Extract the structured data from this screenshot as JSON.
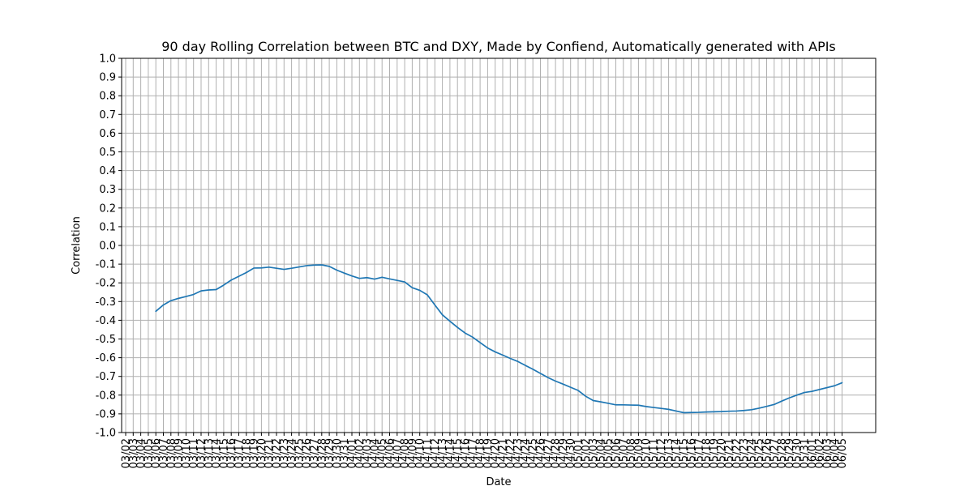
{
  "chart_data": {
    "type": "line",
    "title": "90 day Rolling Correlation between BTC and DXY, Made by Confiend, Automatically generated with APIs",
    "xlabel": "Date",
    "ylabel": "Correlation",
    "ylim": [
      -1.0,
      1.0
    ],
    "yticks": [
      -1.0,
      -0.9,
      -0.8,
      -0.7,
      -0.6,
      -0.5,
      -0.4,
      -0.3,
      -0.2,
      -0.1,
      0.0,
      0.1,
      0.2,
      0.3,
      0.4,
      0.5,
      0.6,
      0.7,
      0.8,
      0.9,
      1.0
    ],
    "ytick_labels": [
      "-1.0",
      "-0.9",
      "-0.8",
      "-0.7",
      "-0.6",
      "-0.5",
      "-0.4",
      "-0.3",
      "-0.2",
      "-0.1",
      "0.0",
      "0.1",
      "0.2",
      "0.3",
      "0.4",
      "0.5",
      "0.6",
      "0.7",
      "0.8",
      "0.9",
      "1.0"
    ],
    "grid": true,
    "x_ticks": [
      "03/02",
      "03/03",
      "03/04",
      "03/05",
      "03/06",
      "03/07",
      "03/08",
      "03/09",
      "03/10",
      "03/11",
      "03/12",
      "03/13",
      "03/14",
      "03/15",
      "03/16",
      "03/17",
      "03/18",
      "03/19",
      "03/20",
      "03/21",
      "03/22",
      "03/23",
      "03/24",
      "03/25",
      "03/26",
      "03/27",
      "03/28",
      "03/29",
      "03/30",
      "03/31",
      "04/01",
      "04/02",
      "04/03",
      "04/04",
      "04/05",
      "04/06",
      "04/07",
      "04/08",
      "04/09",
      "04/10",
      "04/11",
      "04/12",
      "04/13",
      "04/14",
      "04/15",
      "04/16",
      "04/17",
      "04/18",
      "04/19",
      "04/20",
      "04/21",
      "04/22",
      "04/23",
      "04/24",
      "04/25",
      "04/26",
      "04/27",
      "04/28",
      "04/29",
      "04/30",
      "05/01",
      "05/02",
      "05/03",
      "05/04",
      "05/05",
      "05/06",
      "05/07",
      "05/08",
      "05/09",
      "05/10",
      "05/11",
      "05/12",
      "05/13",
      "05/14",
      "05/15",
      "05/16",
      "05/17",
      "05/18",
      "05/19",
      "05/20",
      "05/21",
      "05/22",
      "05/23",
      "05/24",
      "05/25",
      "05/26",
      "05/27",
      "05/28",
      "05/29",
      "05/30",
      "05/31",
      "06/01",
      "06/02",
      "06/03",
      "06/04",
      "06/05"
    ],
    "series": [
      {
        "color": "#1f77b4",
        "x": [
          "03/06",
          "03/07",
          "03/08",
          "03/09",
          "03/10",
          "03/11",
          "03/12",
          "03/13",
          "03/14",
          "03/15",
          "03/16",
          "03/17",
          "03/18",
          "03/19",
          "03/20",
          "03/21",
          "03/22",
          "03/23",
          "03/24",
          "03/25",
          "03/26",
          "03/27",
          "03/28",
          "03/29",
          "03/30",
          "03/31",
          "04/01",
          "04/02",
          "04/03",
          "04/04",
          "04/05",
          "04/06",
          "04/07",
          "04/08",
          "04/09",
          "04/10",
          "04/11",
          "04/12",
          "04/13",
          "04/14",
          "04/15",
          "04/16",
          "04/17",
          "04/18",
          "04/19",
          "04/20",
          "04/21",
          "04/22",
          "04/23",
          "04/24",
          "04/25",
          "04/26",
          "04/27",
          "04/28",
          "04/29",
          "04/30",
          "05/01",
          "05/02",
          "05/03",
          "05/04",
          "05/05",
          "05/06",
          "05/07",
          "05/08",
          "05/09",
          "05/10",
          "05/11",
          "05/12",
          "05/13",
          "05/14",
          "05/15",
          "05/16",
          "05/17",
          "05/18",
          "05/19",
          "05/20",
          "05/21",
          "05/22",
          "05/23",
          "05/24",
          "05/25",
          "05/26",
          "05/27",
          "05/28",
          "05/29",
          "05/30",
          "05/31",
          "06/01",
          "06/02",
          "06/03",
          "06/04",
          "06/05"
        ],
        "values": [
          -0.352,
          -0.318,
          -0.295,
          -0.283,
          -0.273,
          -0.262,
          -0.243,
          -0.238,
          -0.236,
          -0.212,
          -0.185,
          -0.165,
          -0.145,
          -0.121,
          -0.12,
          -0.116,
          -0.122,
          -0.128,
          -0.122,
          -0.115,
          -0.108,
          -0.105,
          -0.104,
          -0.112,
          -0.132,
          -0.148,
          -0.163,
          -0.176,
          -0.172,
          -0.18,
          -0.17,
          -0.179,
          -0.187,
          -0.195,
          -0.226,
          -0.24,
          -0.264,
          -0.318,
          -0.371,
          -0.405,
          -0.438,
          -0.468,
          -0.49,
          -0.519,
          -0.548,
          -0.569,
          -0.586,
          -0.604,
          -0.62,
          -0.641,
          -0.662,
          -0.684,
          -0.706,
          -0.725,
          -0.741,
          -0.758,
          -0.775,
          -0.806,
          -0.829,
          -0.836,
          -0.844,
          -0.852,
          -0.852,
          -0.853,
          -0.854,
          -0.861,
          -0.866,
          -0.871,
          -0.876,
          -0.885,
          -0.894,
          -0.893,
          -0.892,
          -0.89,
          -0.889,
          -0.888,
          -0.886,
          -0.885,
          -0.882,
          -0.878,
          -0.87,
          -0.86,
          -0.85,
          -0.832,
          -0.815,
          -0.8,
          -0.786,
          -0.78,
          -0.77,
          -0.76,
          -0.75,
          -0.734
        ]
      }
    ]
  }
}
